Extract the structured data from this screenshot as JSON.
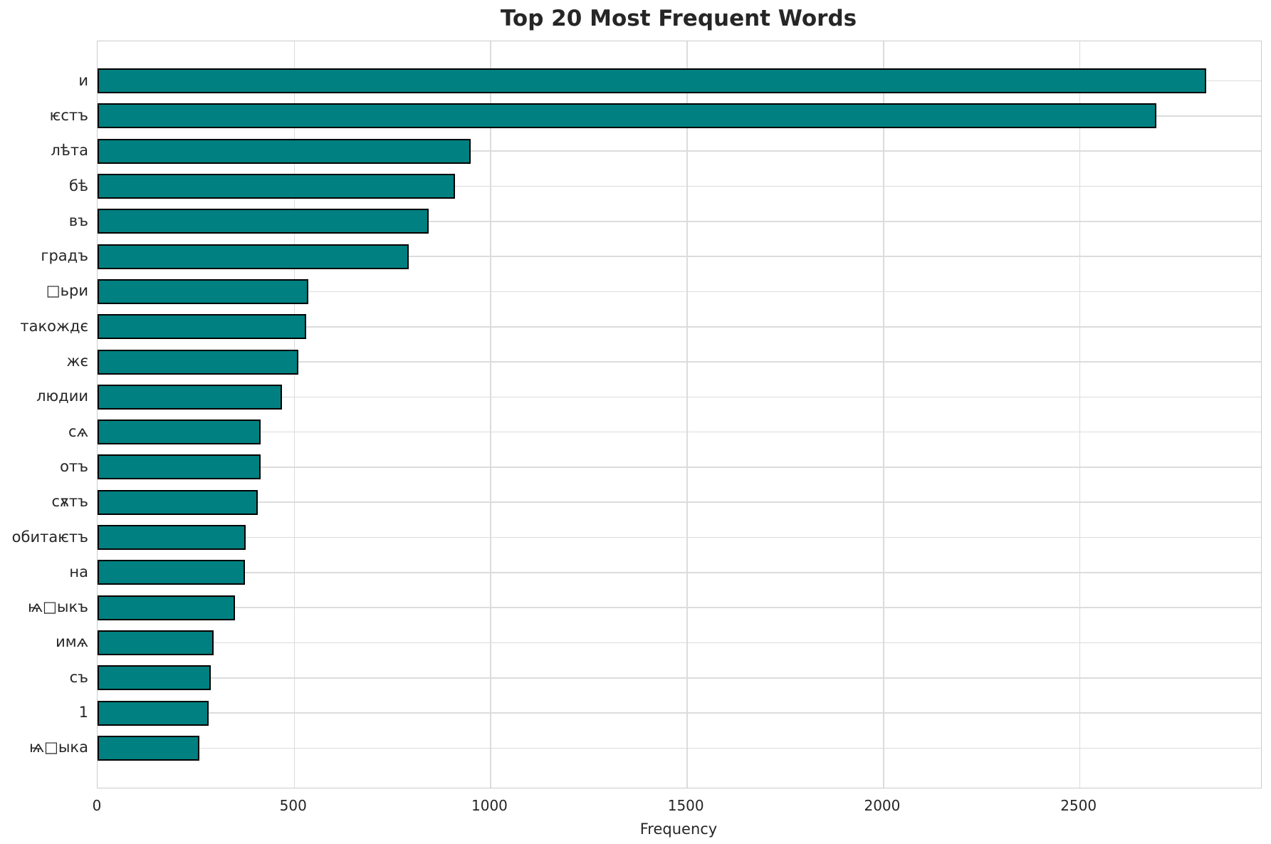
{
  "title": "Top 20 Most Frequent Words",
  "xlabel": "Frequency",
  "colors": {
    "bar_fill": "#008080",
    "bar_edge": "#000000",
    "grid": "#dcdcdc",
    "spine": "#cccccc",
    "text": "#262626"
  },
  "chart_data": {
    "type": "bar",
    "orientation": "horizontal",
    "title": "Top 20 Most Frequent Words",
    "xlabel": "Frequency",
    "ylabel": "",
    "categories": [
      "и",
      "ѥстъ",
      "лѣта",
      "бѣ",
      "въ",
      "градъ",
      "□ьри",
      "такождє",
      "жє",
      "людии",
      "сѧ",
      "отъ",
      "сѫтъ",
      "обитаѥтъ",
      "на",
      "ѩ□ыкъ",
      "имѧ",
      "съ",
      "1",
      "ѩ□ыка"
    ],
    "values": [
      2823,
      2696,
      951,
      911,
      843,
      792,
      536,
      532,
      512,
      470,
      416,
      415,
      408,
      377,
      376,
      350,
      295,
      288,
      282,
      259
    ],
    "xlim": [
      0,
      2963
    ],
    "xticks": [
      0,
      500,
      1000,
      1500,
      2000,
      2500
    ],
    "grid": true,
    "legend": false
  }
}
